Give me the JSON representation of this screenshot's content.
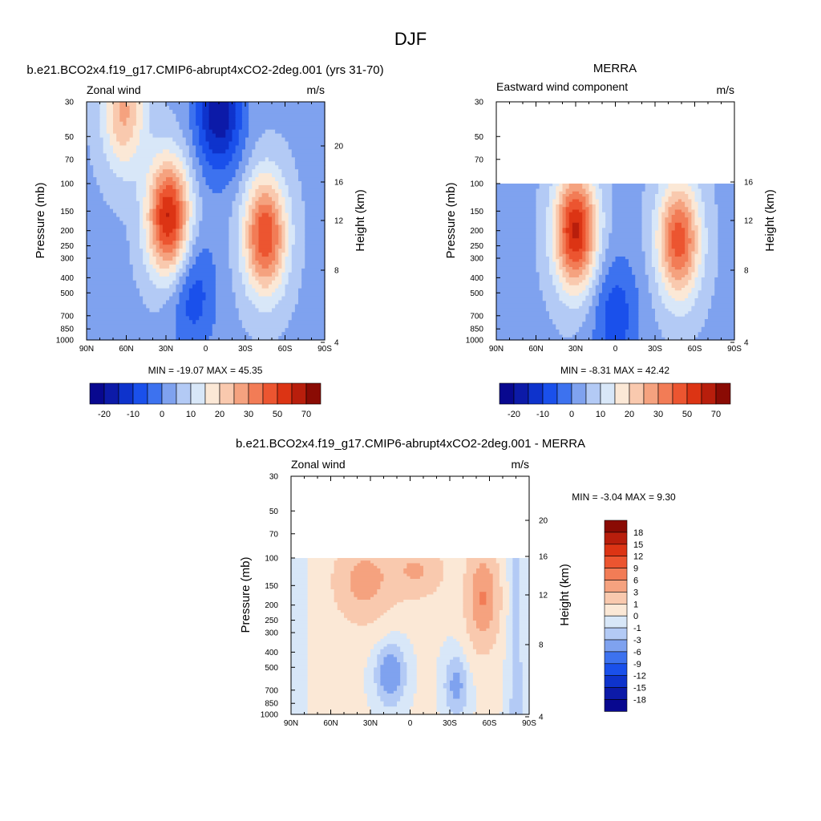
{
  "figure": {
    "title": "DJF"
  },
  "chart_data": [
    {
      "type": "heatmap",
      "title": "b.e21.BCO2x4.f19_g17.CMIP6-abrupt4xCO2-2deg.001 (yrs 31-70)",
      "left_label": "Zonal wind",
      "right_label": "m/s",
      "ylabel": "Pressure (mb)",
      "ylabel_right": "Height (km)",
      "x_ticks": [
        "90N",
        "60N",
        "30N",
        "0",
        "30S",
        "60S",
        "90S"
      ],
      "y_ticks": [
        "30",
        "50",
        "70",
        "100",
        "150",
        "200",
        "250",
        "300",
        "400",
        "500",
        "700",
        "850",
        "1000"
      ],
      "y_ticks_right": [
        "20",
        "16",
        "12",
        "8",
        "4"
      ],
      "stats": "MIN = -19.07  MAX =  45.35",
      "colorbar_labels": [
        "-20",
        "-10",
        "0",
        "10",
        "20",
        "30",
        "50",
        "70"
      ],
      "jets": [
        {
          "lat": 28,
          "p": 165,
          "max": 42
        },
        {
          "lat": -45,
          "p": 215,
          "max": 36
        },
        {
          "lat": 62,
          "p": 35,
          "max": 22
        }
      ],
      "easterlies": [
        {
          "lat": -10,
          "p": 35,
          "min": -19
        },
        {
          "lat": 10,
          "p": 500,
          "min": -8
        }
      ]
    },
    {
      "type": "heatmap",
      "title": "MERRA",
      "left_label": "Eastward wind component",
      "right_label": "m/s",
      "ylabel": "Pressure (mb)",
      "ylabel_right": "Height (km)",
      "x_ticks": [
        "90N",
        "60N",
        "30N",
        "0",
        "30S",
        "60S",
        "90S"
      ],
      "y_ticks": [
        "30",
        "50",
        "70",
        "100",
        "150",
        "200",
        "250",
        "300",
        "400",
        "500",
        "700",
        "850",
        "1000"
      ],
      "y_ticks_right": [
        "16",
        "12",
        "8",
        "4"
      ],
      "data_top_pressure": 100,
      "stats": "MIN =  -8.31  MAX =  42.42",
      "colorbar_labels": [
        "-20",
        "-10",
        "0",
        "10",
        "20",
        "30",
        "50",
        "70"
      ],
      "jets": [
        {
          "lat": 30,
          "p": 200,
          "max": 42
        },
        {
          "lat": -48,
          "p": 230,
          "max": 34
        }
      ],
      "easterlies": [
        {
          "lat": 0,
          "p": 700,
          "min": -8
        }
      ]
    },
    {
      "type": "heatmap",
      "title": "b.e21.BCO2x4.f19_g17.CMIP6-abrupt4xCO2-2deg.001 - MERRA",
      "left_label": "Zonal wind",
      "right_label": "m/s",
      "ylabel": "Pressure (mb)",
      "ylabel_right": "Height (km)",
      "x_ticks": [
        "90N",
        "60N",
        "30N",
        "0",
        "30S",
        "60S",
        "90S"
      ],
      "y_ticks": [
        "30",
        "50",
        "70",
        "100",
        "150",
        "200",
        "250",
        "300",
        "400",
        "500",
        "700",
        "850",
        "1000"
      ],
      "y_ticks_right": [
        "20",
        "16",
        "12",
        "8",
        "4"
      ],
      "data_top_pressure": 100,
      "stats": "MIN =  -3.04  MAX =   9.30",
      "colorbar_labels": [
        "18",
        "15",
        "12",
        "9",
        "6",
        "3",
        "1",
        "0",
        "-1",
        "-3",
        "-6",
        "-9",
        "-12",
        "-15",
        "-18"
      ]
    }
  ],
  "colormap": [
    "#08088f",
    "#0c1aa8",
    "#0e33cc",
    "#1a50eb",
    "#3d72ef",
    "#7fa2ef",
    "#b3caf5",
    "#d8e7f8",
    "#fbe8d6",
    "#f9c9ae",
    "#f5a27f",
    "#f27c56",
    "#ec5530",
    "#dc3414",
    "#b81e0c",
    "#8a0b04"
  ]
}
